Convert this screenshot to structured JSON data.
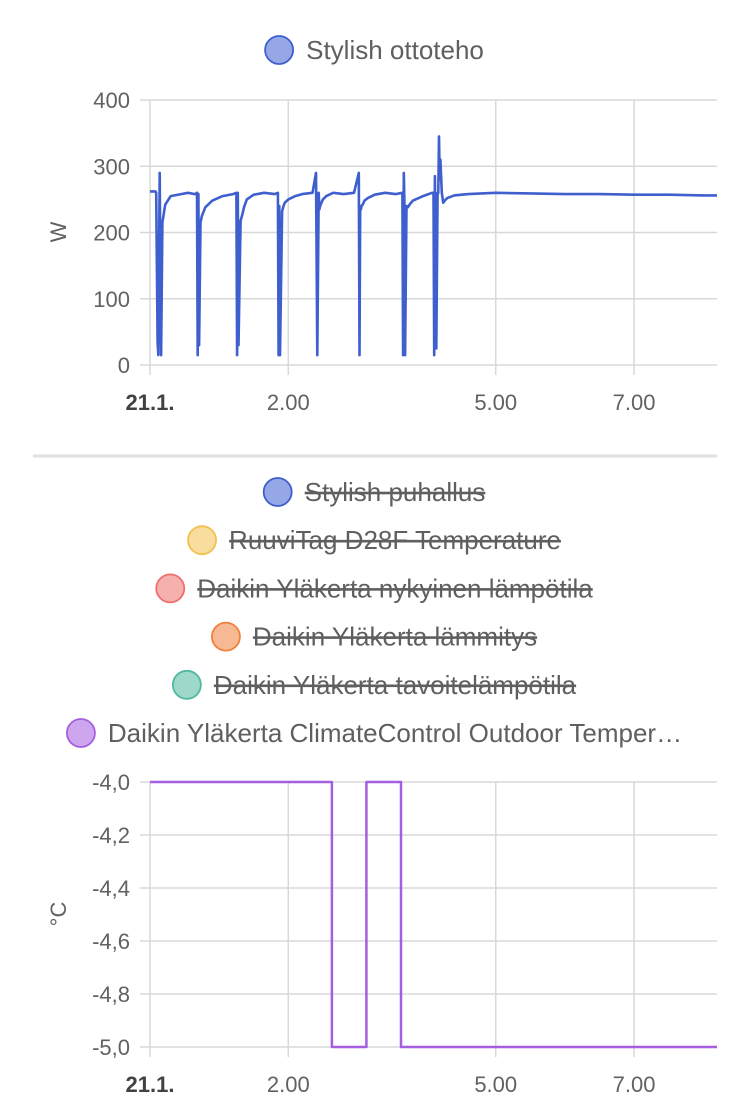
{
  "chart_data": [
    {
      "type": "line",
      "legend": [
        {
          "name": "Stylish ottoteho",
          "color": "#3f5fcf",
          "hidden": false
        }
      ],
      "ylabel": "W",
      "ylim": [
        0,
        400
      ],
      "yticks": [
        "0",
        "100",
        "200",
        "300",
        "400"
      ],
      "xlim": [
        0,
        8.2
      ],
      "xticks": [
        {
          "label": "21.1.",
          "hour": 0,
          "bold": true
        },
        {
          "label": "2.00",
          "hour": 2
        },
        {
          "label": "5.00",
          "hour": 5
        },
        {
          "label": "7.00",
          "hour": 7
        }
      ],
      "grid": true,
      "series": [
        {
          "name": "Stylish ottoteho",
          "color": "#3f5fcf",
          "x": [
            0.0,
            0.08,
            0.09,
            0.11,
            0.12,
            0.14,
            0.16,
            0.18,
            0.22,
            0.3,
            0.45,
            0.55,
            0.65,
            0.68,
            0.69,
            0.7,
            0.71,
            0.73,
            0.75,
            0.8,
            0.9,
            1.05,
            1.2,
            1.25,
            1.26,
            1.27,
            1.28,
            1.31,
            1.33,
            1.36,
            1.4,
            1.5,
            1.65,
            1.8,
            1.85,
            1.86,
            1.87,
            1.88,
            1.91,
            1.93,
            1.95,
            2.0,
            2.1,
            2.2,
            2.35,
            2.4,
            2.42,
            2.44,
            2.45,
            2.46,
            2.48,
            2.5,
            2.55,
            2.65,
            2.8,
            2.95,
            3.02,
            3.03,
            3.04,
            3.05,
            3.06,
            3.08,
            3.1,
            3.15,
            3.25,
            3.4,
            3.55,
            3.65,
            3.66,
            3.67,
            3.68,
            3.69,
            3.71,
            3.73,
            3.76,
            3.8,
            3.95,
            4.08,
            4.1,
            4.11,
            4.12,
            4.14,
            4.16,
            4.17,
            4.18,
            4.19,
            4.2,
            4.22,
            4.24,
            4.26,
            4.3,
            4.4,
            4.6,
            5.0,
            5.5,
            6.0,
            6.5,
            7.0,
            7.5,
            8.0,
            8.2
          ],
          "values": [
            262,
            262,
            260,
            35,
            15,
            290,
            15,
            215,
            242,
            255,
            258,
            260,
            258,
            260,
            15,
            258,
            30,
            215,
            225,
            238,
            248,
            255,
            258,
            260,
            15,
            260,
            30,
            218,
            225,
            238,
            250,
            257,
            260,
            258,
            260,
            15,
            240,
            15,
            232,
            240,
            245,
            250,
            255,
            258,
            260,
            290,
            15,
            260,
            235,
            240,
            245,
            250,
            255,
            260,
            258,
            260,
            290,
            15,
            240,
            235,
            240,
            243,
            248,
            252,
            257,
            260,
            258,
            260,
            15,
            290,
            240,
            15,
            240,
            238,
            243,
            248,
            255,
            260,
            260,
            15,
            285,
            25,
            260,
            260,
            345,
            280,
            310,
            260,
            245,
            248,
            252,
            256,
            258,
            260,
            259,
            258,
            258,
            257,
            257,
            256,
            256
          ]
        }
      ]
    },
    {
      "type": "line",
      "legend": [
        {
          "name": "Stylish puhallus",
          "color": "#3f5fcf",
          "hidden": true
        },
        {
          "name": "RuuviTag D28F Temperature",
          "color": "#f2c14e",
          "hidden": true
        },
        {
          "name": "Daikin Yläkerta nykyinen lämpötila",
          "color": "#ef6f6c",
          "hidden": true
        },
        {
          "name": "Daikin Yläkerta lämmitys",
          "color": "#f0803c",
          "hidden": true
        },
        {
          "name": "Daikin Yläkerta tavoitelämpötila",
          "color": "#4fb8a0",
          "hidden": true
        },
        {
          "name": "Daikin Yläkerta ClimateControl Outdoor Temper…",
          "color": "#a55ee0",
          "hidden": false
        }
      ],
      "ylabel": "°C",
      "ylim": [
        -5.0,
        -4.0
      ],
      "yticks": [
        "-5,0",
        "-4,8",
        "-4,6",
        "-4,4",
        "-4,2",
        "-4,0"
      ],
      "xlim": [
        0,
        8.2
      ],
      "xticks": [
        {
          "label": "21.1.",
          "hour": 0,
          "bold": true
        },
        {
          "label": "2.00",
          "hour": 2
        },
        {
          "label": "5.00",
          "hour": 5
        },
        {
          "label": "7.00",
          "hour": 7
        }
      ],
      "grid": true,
      "series": [
        {
          "name": "Daikin Yläkerta ClimateControl Outdoor Temper…",
          "color": "#a55ee0",
          "step": true,
          "x": [
            0.0,
            2.63,
            3.13,
            3.63,
            8.2
          ],
          "values": [
            -4.0,
            -5.0,
            -4.0,
            -5.0,
            -5.0
          ]
        }
      ]
    }
  ]
}
